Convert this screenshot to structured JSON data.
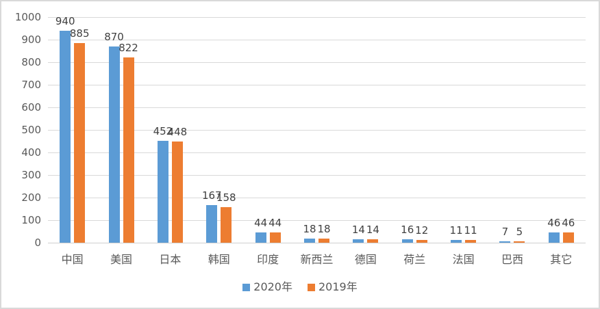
{
  "chart_data": {
    "type": "bar",
    "title": "",
    "xlabel": "",
    "ylabel": "",
    "categories": [
      "中国",
      "美国",
      "日本",
      "韩国",
      "印度",
      "新西兰",
      "德国",
      "荷兰",
      "法国",
      "巴西",
      "其它"
    ],
    "series": [
      {
        "name": "2020年",
        "color": "#5B9BD5",
        "values": [
          940,
          870,
          452,
          167,
          44,
          18,
          14,
          16,
          11,
          7,
          46
        ]
      },
      {
        "name": "2019年",
        "color": "#ED7D31",
        "values": [
          885,
          822,
          448,
          158,
          44,
          18,
          14,
          12,
          11,
          5,
          46
        ]
      }
    ],
    "ylim": [
      0,
      1000
    ],
    "yticks": [
      0,
      100,
      200,
      300,
      400,
      500,
      600,
      700,
      800,
      900,
      1000
    ],
    "grid": true,
    "data_labels": true,
    "legend_position": "bottom"
  },
  "style": {
    "series_colors": [
      "#5B9BD5",
      "#ED7D31"
    ],
    "gridline_color": "#D9D9D9",
    "axis_line_color": "#CFCFCF",
    "tick_label_color": "#595959",
    "data_label_color": "#404040",
    "background": "#FFFFFF",
    "frame_border_color": "#D9D9D9"
  }
}
